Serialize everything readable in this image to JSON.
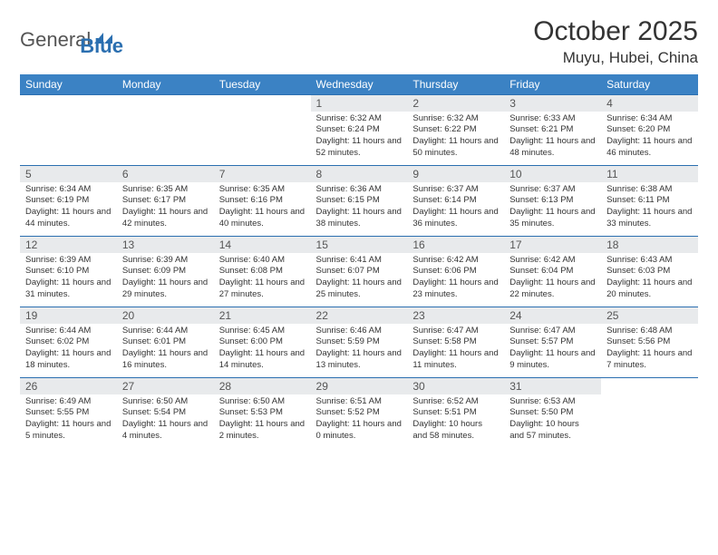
{
  "brand": {
    "name1": "General",
    "name2": "Blue"
  },
  "title": "October 2025",
  "location": "Muyu, Hubei, China",
  "colors": {
    "header_bg": "#3b82c4",
    "header_text": "#ffffff",
    "num_row_bg": "#e8eaec",
    "border": "#2b6fb0",
    "text": "#333333",
    "brand_blue": "#2b6fb0"
  },
  "daynames": [
    "Sunday",
    "Monday",
    "Tuesday",
    "Wednesday",
    "Thursday",
    "Friday",
    "Saturday"
  ],
  "weeks": [
    [
      null,
      null,
      null,
      {
        "d": "1",
        "sr": "6:32 AM",
        "ss": "6:24 PM",
        "dl": "11 hours and 52 minutes."
      },
      {
        "d": "2",
        "sr": "6:32 AM",
        "ss": "6:22 PM",
        "dl": "11 hours and 50 minutes."
      },
      {
        "d": "3",
        "sr": "6:33 AM",
        "ss": "6:21 PM",
        "dl": "11 hours and 48 minutes."
      },
      {
        "d": "4",
        "sr": "6:34 AM",
        "ss": "6:20 PM",
        "dl": "11 hours and 46 minutes."
      }
    ],
    [
      {
        "d": "5",
        "sr": "6:34 AM",
        "ss": "6:19 PM",
        "dl": "11 hours and 44 minutes."
      },
      {
        "d": "6",
        "sr": "6:35 AM",
        "ss": "6:17 PM",
        "dl": "11 hours and 42 minutes."
      },
      {
        "d": "7",
        "sr": "6:35 AM",
        "ss": "6:16 PM",
        "dl": "11 hours and 40 minutes."
      },
      {
        "d": "8",
        "sr": "6:36 AM",
        "ss": "6:15 PM",
        "dl": "11 hours and 38 minutes."
      },
      {
        "d": "9",
        "sr": "6:37 AM",
        "ss": "6:14 PM",
        "dl": "11 hours and 36 minutes."
      },
      {
        "d": "10",
        "sr": "6:37 AM",
        "ss": "6:13 PM",
        "dl": "11 hours and 35 minutes."
      },
      {
        "d": "11",
        "sr": "6:38 AM",
        "ss": "6:11 PM",
        "dl": "11 hours and 33 minutes."
      }
    ],
    [
      {
        "d": "12",
        "sr": "6:39 AM",
        "ss": "6:10 PM",
        "dl": "11 hours and 31 minutes."
      },
      {
        "d": "13",
        "sr": "6:39 AM",
        "ss": "6:09 PM",
        "dl": "11 hours and 29 minutes."
      },
      {
        "d": "14",
        "sr": "6:40 AM",
        "ss": "6:08 PM",
        "dl": "11 hours and 27 minutes."
      },
      {
        "d": "15",
        "sr": "6:41 AM",
        "ss": "6:07 PM",
        "dl": "11 hours and 25 minutes."
      },
      {
        "d": "16",
        "sr": "6:42 AM",
        "ss": "6:06 PM",
        "dl": "11 hours and 23 minutes."
      },
      {
        "d": "17",
        "sr": "6:42 AM",
        "ss": "6:04 PM",
        "dl": "11 hours and 22 minutes."
      },
      {
        "d": "18",
        "sr": "6:43 AM",
        "ss": "6:03 PM",
        "dl": "11 hours and 20 minutes."
      }
    ],
    [
      {
        "d": "19",
        "sr": "6:44 AM",
        "ss": "6:02 PM",
        "dl": "11 hours and 18 minutes."
      },
      {
        "d": "20",
        "sr": "6:44 AM",
        "ss": "6:01 PM",
        "dl": "11 hours and 16 minutes."
      },
      {
        "d": "21",
        "sr": "6:45 AM",
        "ss": "6:00 PM",
        "dl": "11 hours and 14 minutes."
      },
      {
        "d": "22",
        "sr": "6:46 AM",
        "ss": "5:59 PM",
        "dl": "11 hours and 13 minutes."
      },
      {
        "d": "23",
        "sr": "6:47 AM",
        "ss": "5:58 PM",
        "dl": "11 hours and 11 minutes."
      },
      {
        "d": "24",
        "sr": "6:47 AM",
        "ss": "5:57 PM",
        "dl": "11 hours and 9 minutes."
      },
      {
        "d": "25",
        "sr": "6:48 AM",
        "ss": "5:56 PM",
        "dl": "11 hours and 7 minutes."
      }
    ],
    [
      {
        "d": "26",
        "sr": "6:49 AM",
        "ss": "5:55 PM",
        "dl": "11 hours and 5 minutes."
      },
      {
        "d": "27",
        "sr": "6:50 AM",
        "ss": "5:54 PM",
        "dl": "11 hours and 4 minutes."
      },
      {
        "d": "28",
        "sr": "6:50 AM",
        "ss": "5:53 PM",
        "dl": "11 hours and 2 minutes."
      },
      {
        "d": "29",
        "sr": "6:51 AM",
        "ss": "5:52 PM",
        "dl": "11 hours and 0 minutes."
      },
      {
        "d": "30",
        "sr": "6:52 AM",
        "ss": "5:51 PM",
        "dl": "10 hours and 58 minutes."
      },
      {
        "d": "31",
        "sr": "6:53 AM",
        "ss": "5:50 PM",
        "dl": "10 hours and 57 minutes."
      },
      null
    ]
  ],
  "labels": {
    "sunrise": "Sunrise:",
    "sunset": "Sunset:",
    "daylight": "Daylight:"
  }
}
